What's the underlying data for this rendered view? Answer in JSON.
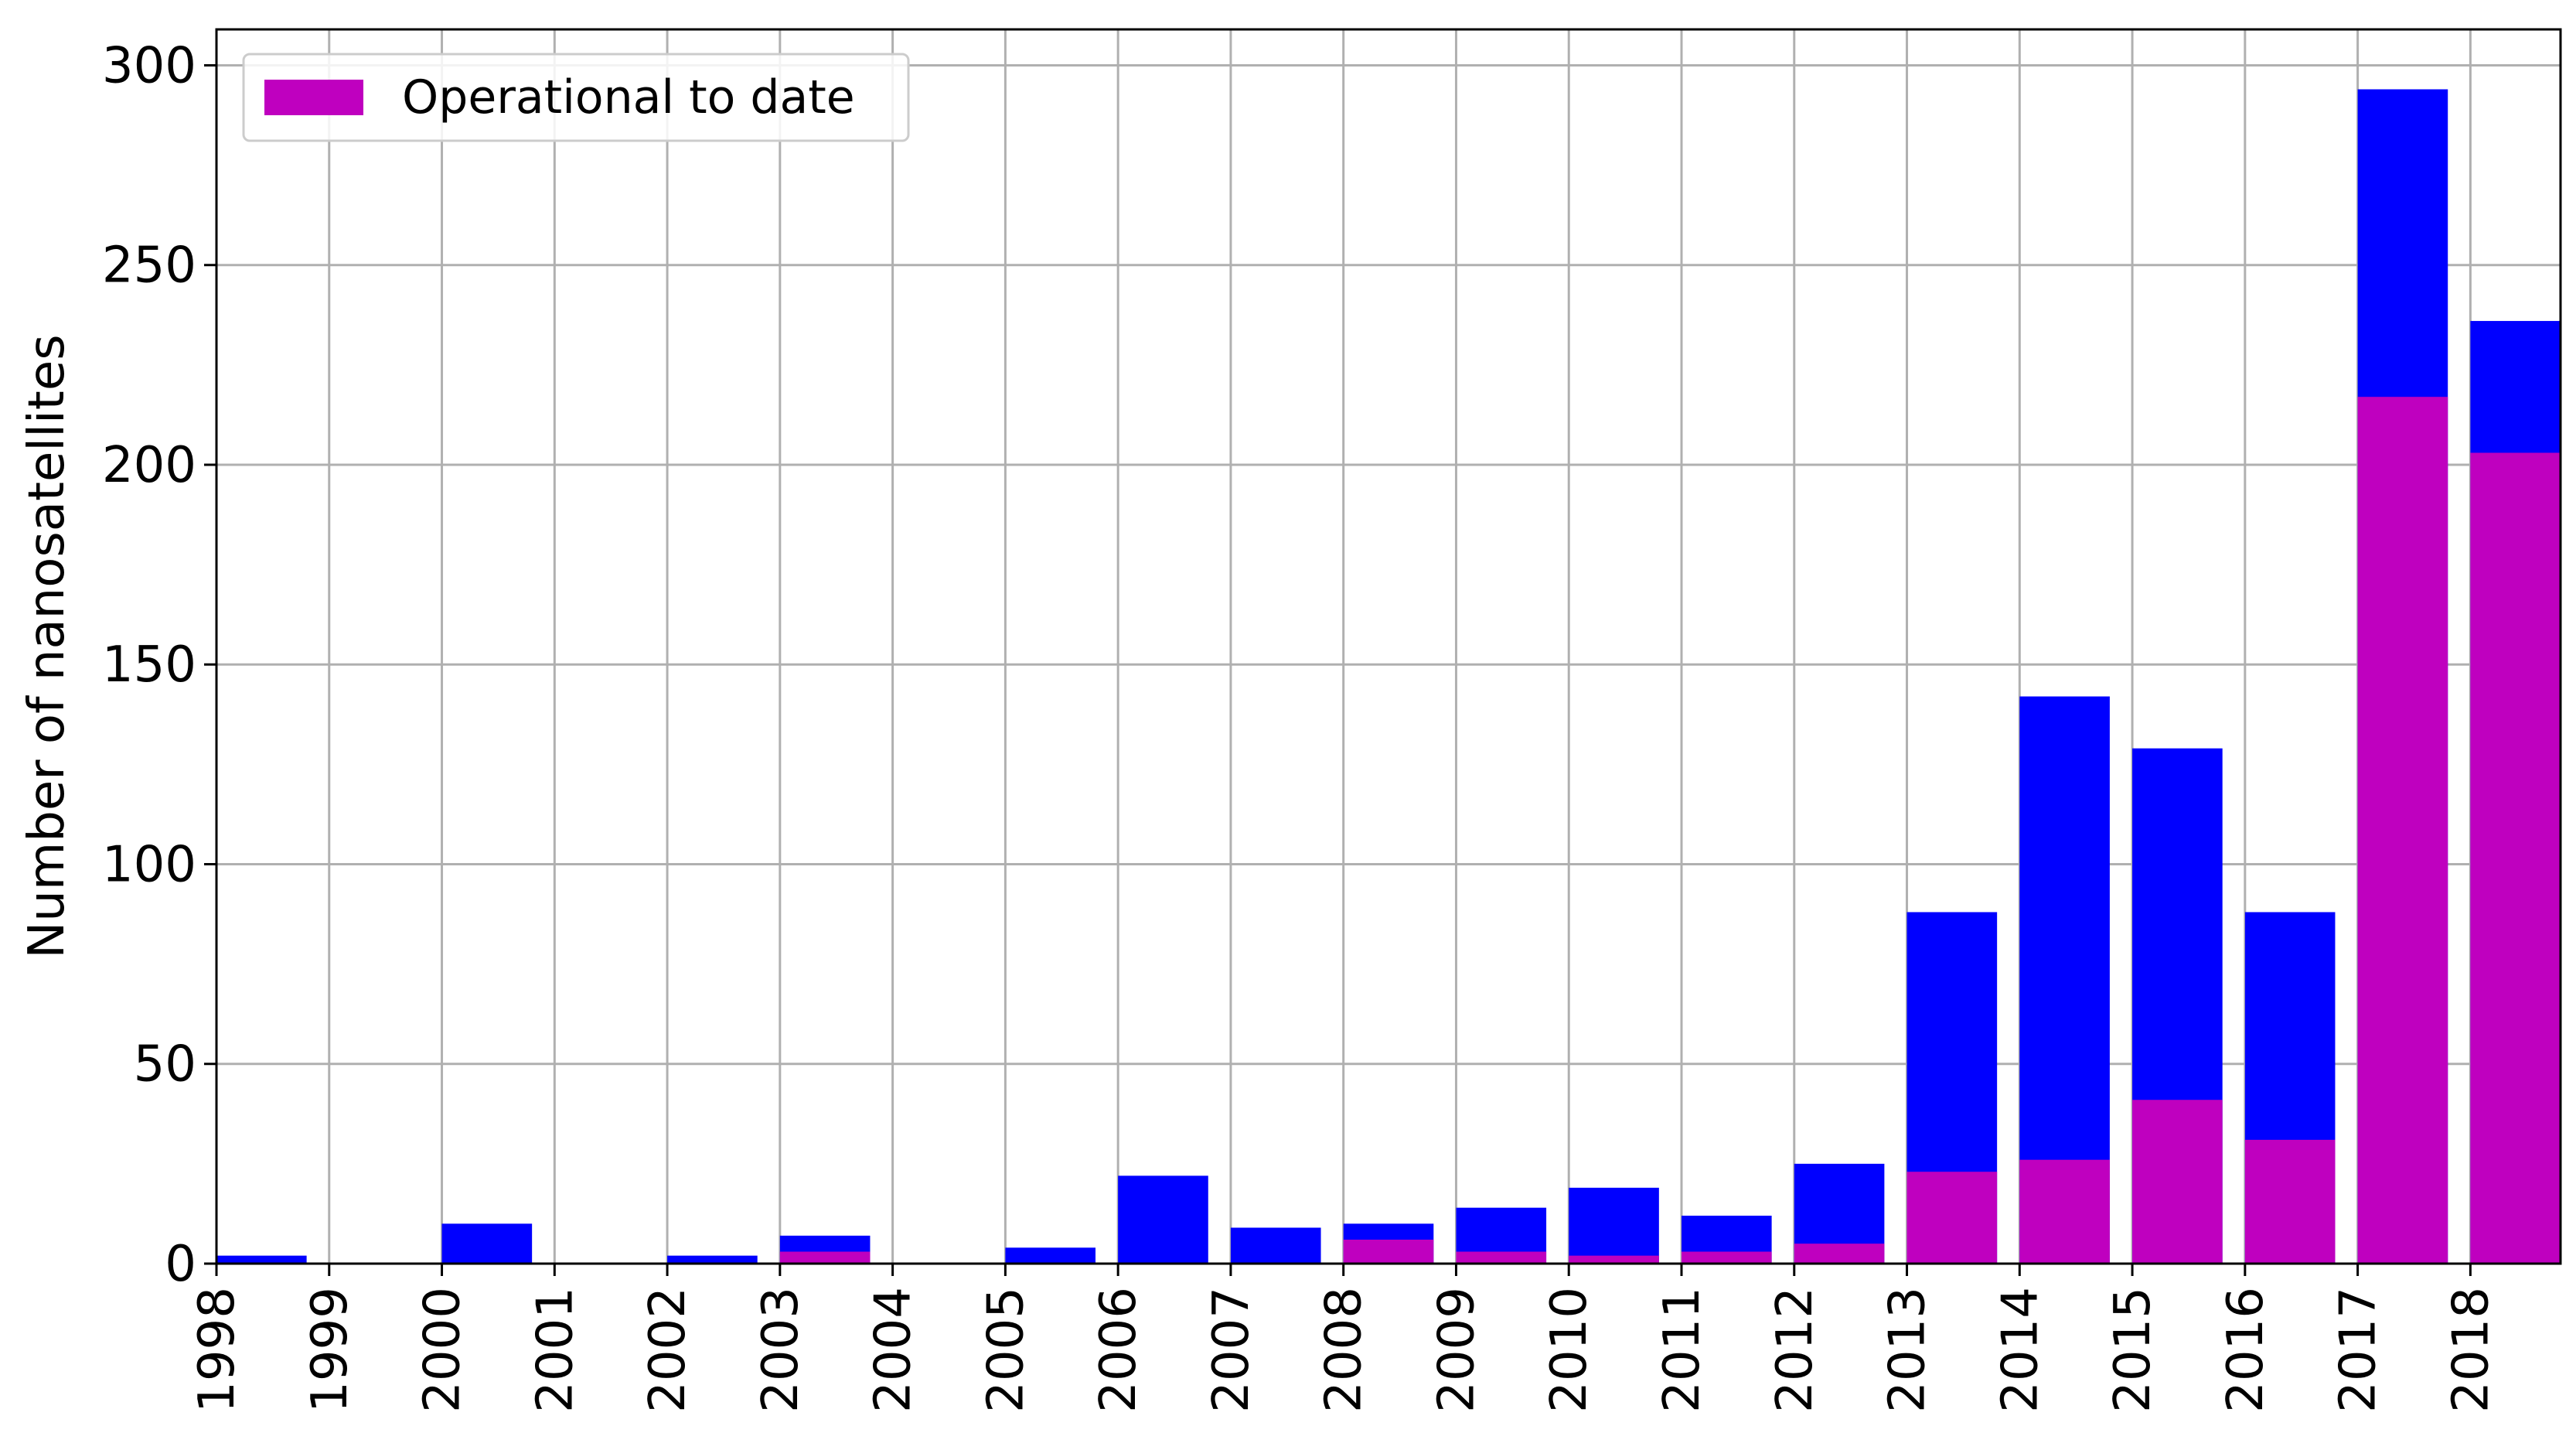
{
  "chart_data": {
    "type": "bar",
    "ylabel": "Number of nanosatellites",
    "xlabel": "",
    "categories": [
      "1998",
      "1999",
      "2000",
      "2001",
      "2002",
      "2003",
      "2004",
      "2005",
      "2006",
      "2007",
      "2008",
      "2009",
      "2010",
      "2011",
      "2012",
      "2013",
      "2014",
      "2015",
      "2016",
      "2017",
      "2018"
    ],
    "series": [
      {
        "values": [
          2,
          0,
          10,
          0,
          2,
          7,
          0,
          4,
          22,
          9,
          10,
          14,
          19,
          12,
          25,
          88,
          142,
          129,
          88,
          294,
          236
        ],
        "color": "#0000ff"
      },
      {
        "name": "Operational to date",
        "values": [
          0,
          0,
          0,
          0,
          0,
          3,
          0,
          0,
          0,
          0,
          6,
          3,
          2,
          3,
          5,
          23,
          26,
          41,
          31,
          217,
          203
        ],
        "color": "#bf00bf"
      }
    ],
    "ylim": [
      0,
      309
    ],
    "yticks": [
      0,
      50,
      100,
      150,
      200,
      250,
      300
    ],
    "grid": true,
    "legend_position": "top-left"
  }
}
